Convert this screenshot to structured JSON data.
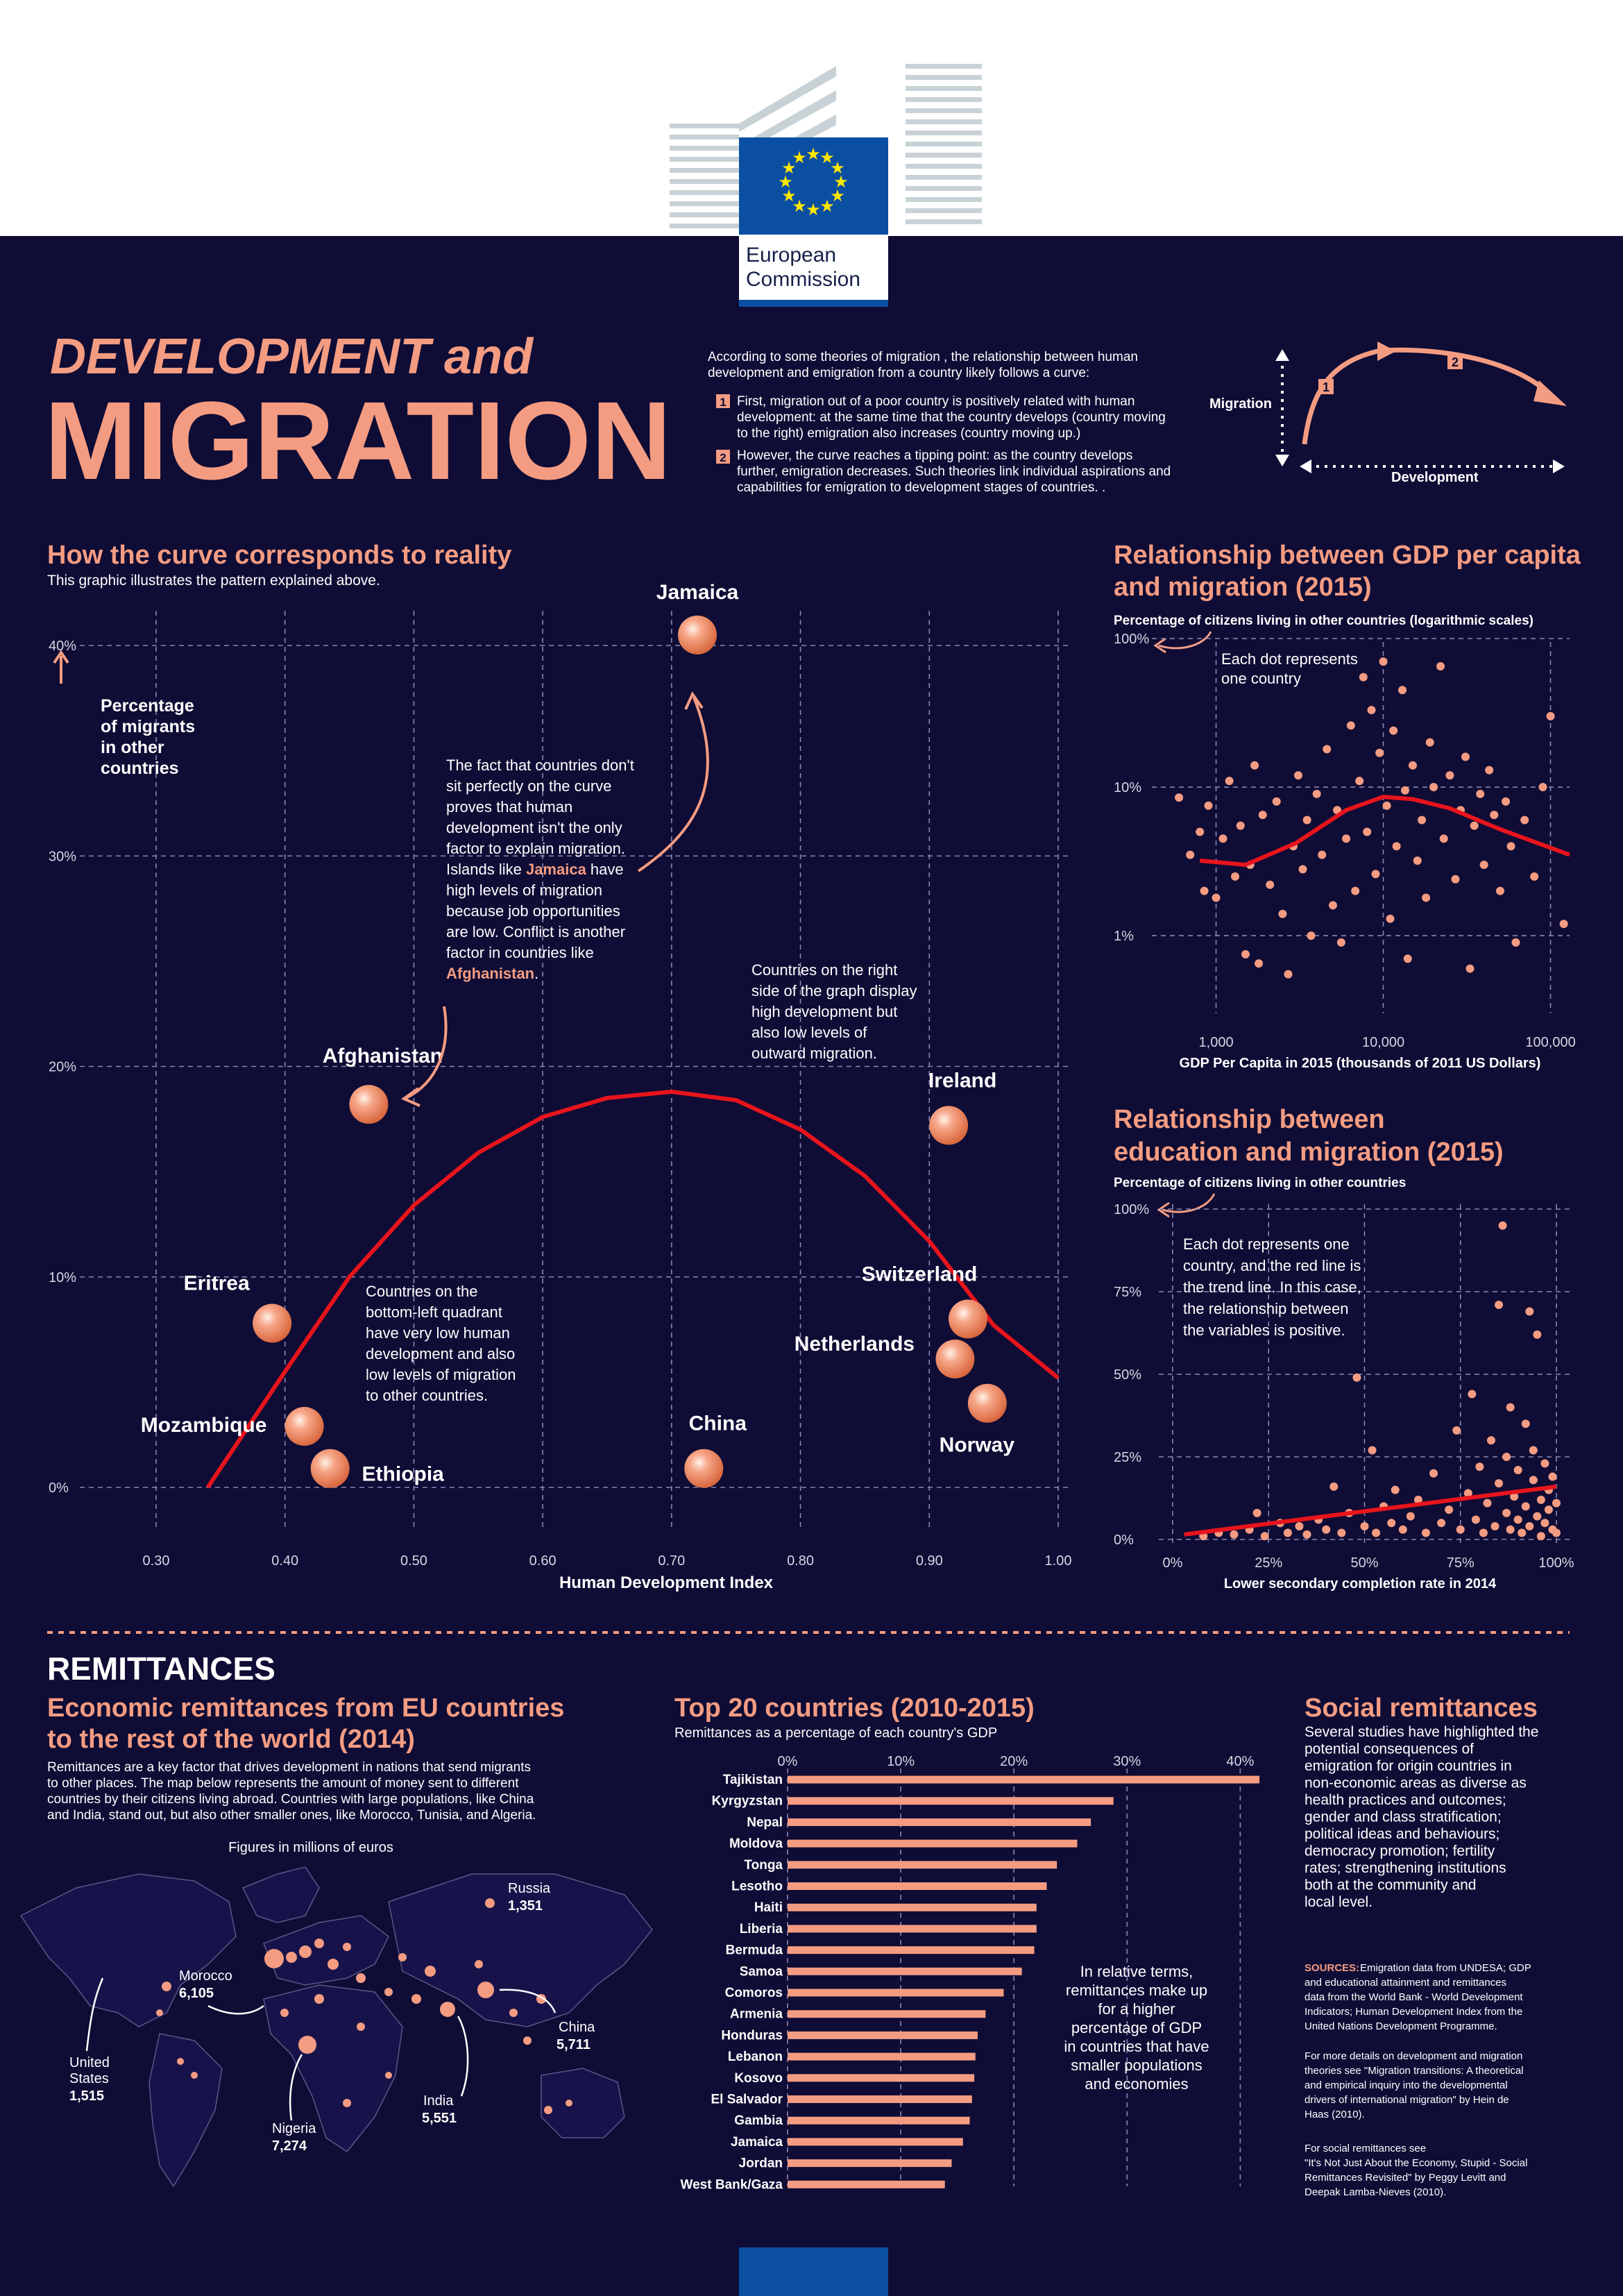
{
  "header": {
    "logo_line1": "European",
    "logo_line2": "Commission",
    "title_small": "DEVELOPMENT and",
    "title_big": "MIGRATION"
  },
  "intro": {
    "lead": [
      "According to some theories of migration , the relationship between human",
      "development and emigration from a country likely follows a curve:"
    ],
    "points": [
      {
        "num": "1",
        "lines": [
          "First, migration out of a poor country is positively related with human",
          "development: at the same time that the country develops (country moving",
          "to the right) emigration also increases (country moving up.)"
        ]
      },
      {
        "num": "2",
        "lines": [
          "However, the curve reaches a tipping point: as the country develops",
          "further, emigration decreases. Such theories link individual aspirations and",
          "capabilities for emigration to development stages of countries. ."
        ]
      }
    ],
    "diagram": {
      "y_label": "Migration",
      "x_label": "Development",
      "step1": "1",
      "step2": "2"
    }
  },
  "curve_section": {
    "title": "How the curve corresponds to reality",
    "subtitle": "This graphic illustrates the pattern explained above.",
    "y_axis_label": [
      "Percentage",
      "of migrants",
      "in other",
      "countries"
    ],
    "annotation_jamaica": [
      "The fact that countries don't",
      "sit perfectly on the curve",
      "proves that human",
      "development isn't the only",
      "factor to explain migration.",
      "Islands like Jamaica have",
      "high levels of migration",
      "because job opportunities",
      "are low. Conflict is another",
      "factor in countries like",
      "Afghanistan."
    ],
    "annotation_right": [
      "Countries on the right",
      "side of the graph display",
      "high development but",
      "also low levels of",
      "outward migration."
    ],
    "annotation_bottom_left": [
      "Countries on the",
      "bottom-left quadrant",
      "have very low human",
      "development and also",
      "low levels of migration",
      "to other countries."
    ]
  },
  "gdp_section": {
    "title_lines": [
      "Relationship between GDP per capita",
      "and migration (2015)"
    ],
    "subtitle": "Percentage of citizens living in other countries (logarithmic scales)",
    "note": [
      "Each dot represents",
      "one country"
    ]
  },
  "edu_section": {
    "title_lines": [
      "Relationship between",
      "education and migration (2015)"
    ],
    "subtitle": "Percentage of citizens living in other countries",
    "note": [
      "Each dot represents one",
      "country, and the red line is",
      "the trend line. In this case,",
      "the relationship between",
      "the variables is positive."
    ]
  },
  "remittances": {
    "heading": "REMITTANCES",
    "map_title_lines": [
      "Economic remittances from EU countries",
      "to the rest of the world (2014)"
    ],
    "map_text": [
      "Remittances are a key factor that drives development in nations that send migrants",
      "to other places. The map below represents the amount of money sent to different",
      "countries by their citizens living abroad. Countries with large populations, like China",
      "and India, stand out, but also other smaller ones, like Morocco, Tunisia, and Algeria."
    ],
    "map_caption": "Figures in millions of euros",
    "map_labels": [
      {
        "name": "Russia",
        "value": "1,351"
      },
      {
        "name": "Morocco",
        "value": "6,105"
      },
      {
        "name": "China",
        "value": "5,711"
      },
      {
        "name": "United States",
        "name_lines": [
          "United",
          "States"
        ],
        "value": "1,515"
      },
      {
        "name": "India",
        "value": "5,551"
      },
      {
        "name": "Nigeria",
        "value": "7,274"
      }
    ],
    "top20_title": "Top 20 countries (2010-2015)",
    "top20_subtitle": "Remittances as a percentage of each country's GDP",
    "top20_note": [
      "In relative terms,",
      "remittances make up",
      "for a higher",
      "percentage of GDP",
      "in countries that have",
      "smaller populations",
      "and economies"
    ],
    "social_title": "Social remittances",
    "social_text": [
      "Several studies have highlighted the",
      "potential consequences of",
      "emigration for origin countries in",
      "non-economic areas as diverse as",
      "health practices and outcomes;",
      "gender and class stratification;",
      "political ideas and behaviours;",
      "democracy promotion; fertility",
      "rates; strengthening institutions",
      "both at the community and",
      "local level."
    ],
    "sources_label": "SOURCES:",
    "sources_lines": [
      "Emigration data from UNDESA; GDP",
      "and educational attainment and remittances",
      "data from the World Bank - World Development",
      "Indicators; Human Development Index from the",
      "United Nations Development Programme."
    ],
    "more_lines": [
      "For more details on development and migration",
      "theories see \"Migration transitions: A theoretical",
      "and empirical inquiry into the developmental",
      "drivers of international migration\" by Hein de",
      "Haas (2010)."
    ],
    "social_ref_lines": [
      "For social remittances see",
      "\"It's Not Just About the Economy, Stupid - Social",
      "Remittances Revisited\" by Peggy Levitt and",
      "Deepak Lamba-Nieves (2010)."
    ]
  },
  "chart_data": [
    {
      "type": "scatter",
      "title": "How the curve corresponds to reality",
      "xlabel": "Human Development Index",
      "ylabel": "Percentage of migrants in other countries",
      "xlim": [
        0.3,
        1.0
      ],
      "ylim": [
        0,
        40
      ],
      "x_ticks": [
        "0.30",
        "0.40",
        "0.50",
        "0.60",
        "0.70",
        "0.80",
        "0.90",
        "1.00"
      ],
      "y_ticks": [
        "0%",
        "10%",
        "20%",
        "30%",
        "40%"
      ],
      "points": [
        {
          "label": "Jamaica",
          "x": 0.72,
          "y": 40.5
        },
        {
          "label": "Afghanistan",
          "x": 0.465,
          "y": 18.2
        },
        {
          "label": "Ireland",
          "x": 0.915,
          "y": 17.2
        },
        {
          "label": "Eritrea",
          "x": 0.39,
          "y": 7.8
        },
        {
          "label": "Switzerland",
          "x": 0.93,
          "y": 8.0
        },
        {
          "label": "Netherlands",
          "x": 0.92,
          "y": 6.1
        },
        {
          "label": "Norway",
          "x": 0.945,
          "y": 4.0
        },
        {
          "label": "Mozambique",
          "x": 0.415,
          "y": 2.9
        },
        {
          "label": "Ethiopia",
          "x": 0.435,
          "y": 0.9
        },
        {
          "label": "China",
          "x": 0.725,
          "y": 0.9
        }
      ],
      "curve": {
        "x": [
          0.34,
          0.4,
          0.45,
          0.5,
          0.55,
          0.6,
          0.65,
          0.7,
          0.75,
          0.8,
          0.85,
          0.9,
          0.95,
          1.0
        ],
        "y": [
          0,
          5.5,
          10.0,
          13.4,
          15.9,
          17.6,
          18.5,
          18.8,
          18.4,
          17.0,
          14.8,
          11.7,
          7.7,
          5.2
        ]
      }
    },
    {
      "type": "scatter",
      "title": "Relationship between GDP per capita and migration (2015)",
      "subtitle": "Percentage of citizens living in other countries (logarithmic scales)",
      "xlabel": "GDP Per Capita in 2015 (thousands of 2011 US Dollars)",
      "log_scale": true,
      "xlim": [
        500,
        130000
      ],
      "ylim": [
        0.3,
        100
      ],
      "x_ticks": [
        "1,000",
        "10,000",
        "100,000"
      ],
      "y_ticks": [
        "100%",
        "10%",
        "1%"
      ],
      "points": [
        {
          "x": 600,
          "y": 8.5
        },
        {
          "x": 700,
          "y": 3.5
        },
        {
          "x": 800,
          "y": 5.0
        },
        {
          "x": 850,
          "y": 2.0
        },
        {
          "x": 900,
          "y": 7.5
        },
        {
          "x": 1000,
          "y": 1.8
        },
        {
          "x": 1100,
          "y": 4.5
        },
        {
          "x": 1200,
          "y": 11.0
        },
        {
          "x": 1300,
          "y": 2.5
        },
        {
          "x": 1400,
          "y": 5.5
        },
        {
          "x": 1500,
          "y": 0.75
        },
        {
          "x": 1600,
          "y": 3.0
        },
        {
          "x": 1700,
          "y": 14.0
        },
        {
          "x": 1800,
          "y": 0.65
        },
        {
          "x": 1900,
          "y": 6.5
        },
        {
          "x": 2100,
          "y": 2.2
        },
        {
          "x": 2300,
          "y": 8.0
        },
        {
          "x": 2500,
          "y": 1.4
        },
        {
          "x": 2700,
          "y": 0.55
        },
        {
          "x": 2900,
          "y": 4.0
        },
        {
          "x": 3100,
          "y": 12.0
        },
        {
          "x": 3300,
          "y": 2.8
        },
        {
          "x": 3500,
          "y": 6.0
        },
        {
          "x": 3700,
          "y": 1.0
        },
        {
          "x": 4000,
          "y": 9.0
        },
        {
          "x": 4300,
          "y": 3.5
        },
        {
          "x": 4600,
          "y": 18.0
        },
        {
          "x": 5000,
          "y": 1.6
        },
        {
          "x": 5300,
          "y": 7.0
        },
        {
          "x": 5600,
          "y": 0.9
        },
        {
          "x": 6000,
          "y": 4.5
        },
        {
          "x": 6400,
          "y": 26.0
        },
        {
          "x": 6800,
          "y": 2.0
        },
        {
          "x": 7200,
          "y": 11.0
        },
        {
          "x": 7600,
          "y": 55.0
        },
        {
          "x": 8000,
          "y": 5.0
        },
        {
          "x": 8500,
          "y": 33.0
        },
        {
          "x": 9000,
          "y": 2.6
        },
        {
          "x": 9500,
          "y": 17.0
        },
        {
          "x": 10000,
          "y": 70.0
        },
        {
          "x": 10500,
          "y": 7.5
        },
        {
          "x": 11000,
          "y": 1.3
        },
        {
          "x": 11500,
          "y": 24.0
        },
        {
          "x": 12000,
          "y": 4.0
        },
        {
          "x": 13000,
          "y": 45.0
        },
        {
          "x": 13500,
          "y": 9.5
        },
        {
          "x": 14000,
          "y": 0.7
        },
        {
          "x": 15000,
          "y": 14.0
        },
        {
          "x": 16000,
          "y": 3.2
        },
        {
          "x": 17000,
          "y": 6.0
        },
        {
          "x": 18000,
          "y": 1.8
        },
        {
          "x": 19000,
          "y": 20.0
        },
        {
          "x": 20000,
          "y": 10.0
        },
        {
          "x": 22000,
          "y": 65.0
        },
        {
          "x": 23000,
          "y": 4.5
        },
        {
          "x": 25000,
          "y": 12.0
        },
        {
          "x": 27000,
          "y": 2.4
        },
        {
          "x": 29000,
          "y": 7.0
        },
        {
          "x": 31000,
          "y": 16.0
        },
        {
          "x": 33000,
          "y": 0.6
        },
        {
          "x": 35000,
          "y": 5.5
        },
        {
          "x": 38000,
          "y": 9.0
        },
        {
          "x": 40000,
          "y": 3.0
        },
        {
          "x": 43000,
          "y": 13.0
        },
        {
          "x": 46000,
          "y": 6.5
        },
        {
          "x": 50000,
          "y": 2.0
        },
        {
          "x": 54000,
          "y": 8.0
        },
        {
          "x": 58000,
          "y": 4.0
        },
        {
          "x": 62000,
          "y": 0.9
        },
        {
          "x": 70000,
          "y": 6.0
        },
        {
          "x": 80000,
          "y": 2.5
        },
        {
          "x": 90000,
          "y": 10.0
        },
        {
          "x": 100000,
          "y": 30.0
        },
        {
          "x": 120000,
          "y": 1.2
        }
      ],
      "trend": {
        "x": [
          800,
          1500,
          3000,
          6000,
          10000,
          15000,
          25000,
          50000,
          130000
        ],
        "y": [
          3.2,
          3.0,
          4.2,
          7.0,
          8.6,
          8.3,
          7.2,
          5.2,
          3.5
        ]
      }
    },
    {
      "type": "scatter",
      "title": "Relationship between education and migration (2015)",
      "subtitle": "Percentage of citizens living in other countries",
      "xlabel": "Lower secondary completion rate in 2014",
      "xlim": [
        0,
        100
      ],
      "ylim": [
        0,
        100
      ],
      "x_ticks": [
        "0%",
        "25%",
        "50%",
        "75%",
        "100%"
      ],
      "y_ticks": [
        "0%",
        "25%",
        "50%",
        "75%",
        "100%"
      ],
      "points": [
        {
          "x": 8,
          "y": 1
        },
        {
          "x": 12,
          "y": 2
        },
        {
          "x": 16,
          "y": 1.5
        },
        {
          "x": 20,
          "y": 3
        },
        {
          "x": 22,
          "y": 8
        },
        {
          "x": 24,
          "y": 1
        },
        {
          "x": 28,
          "y": 5
        },
        {
          "x": 30,
          "y": 2
        },
        {
          "x": 33,
          "y": 4
        },
        {
          "x": 35,
          "y": 1.5
        },
        {
          "x": 38,
          "y": 6
        },
        {
          "x": 40,
          "y": 3
        },
        {
          "x": 42,
          "y": 16
        },
        {
          "x": 44,
          "y": 2
        },
        {
          "x": 46,
          "y": 8
        },
        {
          "x": 48,
          "y": 49
        },
        {
          "x": 50,
          "y": 4
        },
        {
          "x": 52,
          "y": 27
        },
        {
          "x": 53,
          "y": 2
        },
        {
          "x": 55,
          "y": 10
        },
        {
          "x": 57,
          "y": 5
        },
        {
          "x": 58,
          "y": 15
        },
        {
          "x": 60,
          "y": 3
        },
        {
          "x": 62,
          "y": 7
        },
        {
          "x": 64,
          "y": 12
        },
        {
          "x": 66,
          "y": 2
        },
        {
          "x": 68,
          "y": 20
        },
        {
          "x": 70,
          "y": 5
        },
        {
          "x": 72,
          "y": 9
        },
        {
          "x": 74,
          "y": 33
        },
        {
          "x": 75,
          "y": 3
        },
        {
          "x": 77,
          "y": 14
        },
        {
          "x": 78,
          "y": 44
        },
        {
          "x": 79,
          "y": 6
        },
        {
          "x": 80,
          "y": 22
        },
        {
          "x": 81,
          "y": 2
        },
        {
          "x": 82,
          "y": 11
        },
        {
          "x": 83,
          "y": 30
        },
        {
          "x": 84,
          "y": 4
        },
        {
          "x": 85,
          "y": 71
        },
        {
          "x": 85,
          "y": 17
        },
        {
          "x": 86,
          "y": 95
        },
        {
          "x": 87,
          "y": 8
        },
        {
          "x": 87,
          "y": 25
        },
        {
          "x": 88,
          "y": 3
        },
        {
          "x": 88,
          "y": 40
        },
        {
          "x": 89,
          "y": 13
        },
        {
          "x": 90,
          "y": 6
        },
        {
          "x": 90,
          "y": 21
        },
        {
          "x": 91,
          "y": 2
        },
        {
          "x": 92,
          "y": 35
        },
        {
          "x": 92,
          "y": 10
        },
        {
          "x": 93,
          "y": 69
        },
        {
          "x": 93,
          "y": 4
        },
        {
          "x": 94,
          "y": 18
        },
        {
          "x": 94,
          "y": 27
        },
        {
          "x": 95,
          "y": 7
        },
        {
          "x": 95,
          "y": 62
        },
        {
          "x": 96,
          "y": 12
        },
        {
          "x": 96,
          "y": 1
        },
        {
          "x": 97,
          "y": 23
        },
        {
          "x": 97,
          "y": 5
        },
        {
          "x": 98,
          "y": 15
        },
        {
          "x": 98,
          "y": 9
        },
        {
          "x": 99,
          "y": 3
        },
        {
          "x": 99,
          "y": 19
        },
        {
          "x": 100,
          "y": 11
        },
        {
          "x": 100,
          "y": 2
        }
      ],
      "trend": {
        "x": [
          3,
          100
        ],
        "y": [
          1.5,
          16
        ]
      }
    },
    {
      "type": "bar",
      "title": "Top 20 countries (2010-2015)",
      "subtitle": "Remittances as a percentage of each country's GDP",
      "xlim": [
        0,
        42
      ],
      "x_ticks": [
        "0%",
        "10%",
        "20%",
        "30%",
        "40%"
      ],
      "categories": [
        "Tajikistan",
        "Kyrgyzstan",
        "Nepal",
        "Moldova",
        "Tonga",
        "Lesotho",
        "Haiti",
        "Liberia",
        "Bermuda",
        "Samoa",
        "Comoros",
        "Armenia",
        "Honduras",
        "Lebanon",
        "Kosovo",
        "El Salvador",
        "Gambia",
        "Jamaica",
        "Jordan",
        "West Bank/Gaza"
      ],
      "values": [
        41.7,
        28.8,
        26.8,
        25.6,
        23.8,
        22.9,
        22.0,
        22.0,
        21.8,
        20.7,
        19.1,
        17.5,
        16.8,
        16.6,
        16.5,
        16.3,
        16.1,
        15.5,
        14.5,
        13.9
      ]
    }
  ]
}
